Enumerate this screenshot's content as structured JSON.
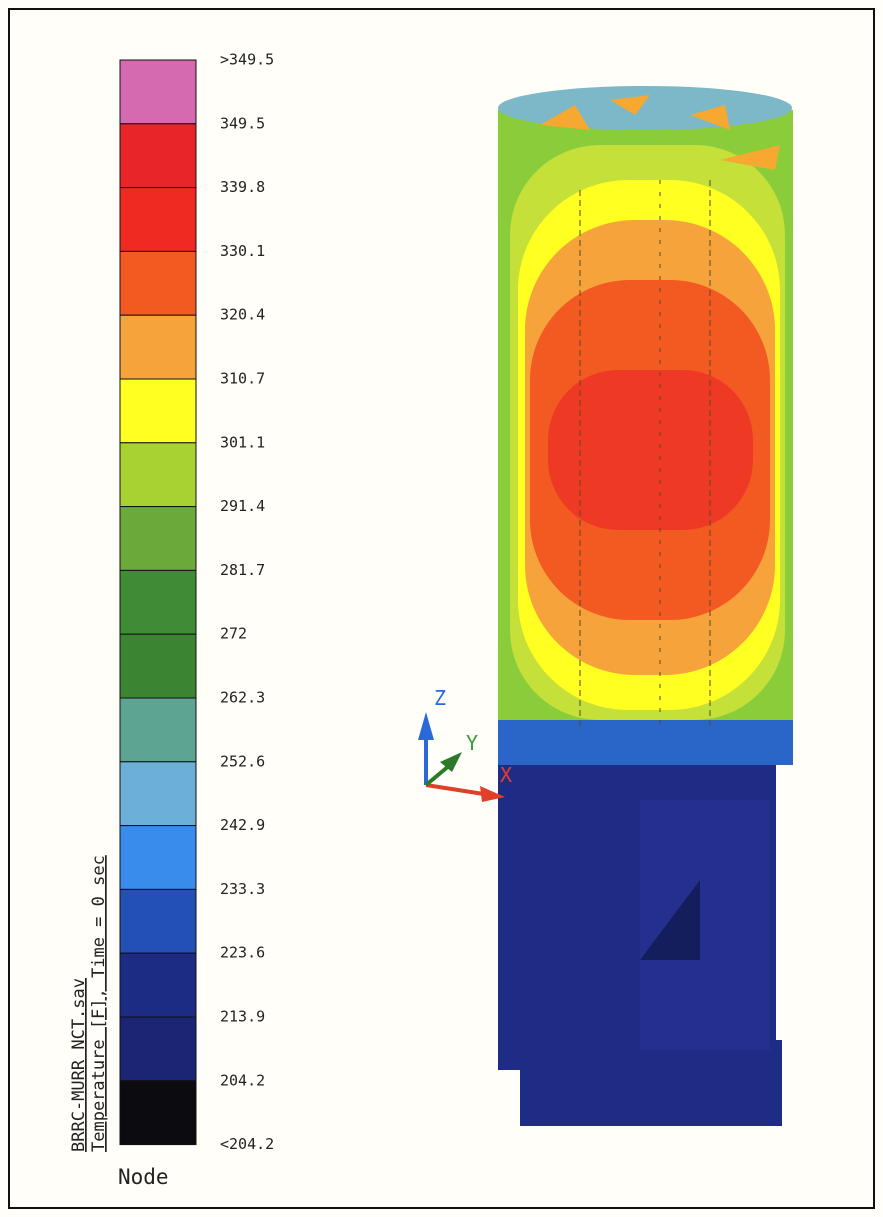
{
  "legend": {
    "labels": [
      ">349.5",
      "349.5",
      "339.8",
      "330.1",
      "320.4",
      "310.7",
      "301.1",
      "291.4",
      "281.7",
      "272",
      "262.3",
      "252.6",
      "242.9",
      "233.3",
      "223.6",
      "213.9",
      "204.2",
      "<204.2"
    ],
    "colors": [
      "#d66ab0",
      "#e8262a",
      "#ee2a22",
      "#f25a22",
      "#f6a33c",
      "#ffff22",
      "#a8d232",
      "#6aaa3a",
      "#3e8c36",
      "#3a8432",
      "#5ea492",
      "#6cb0d8",
      "#3a8cec",
      "#2250b4",
      "#1c2c84",
      "#1c2474",
      "#0c0c10"
    ]
  },
  "caption": {
    "file": "BRRC-MURR NCT.sav",
    "quantity": "Temperature [F], Time = 0 sec",
    "footer": "Node"
  },
  "axes": {
    "z": "Z",
    "y": "Y",
    "x": "X"
  }
}
